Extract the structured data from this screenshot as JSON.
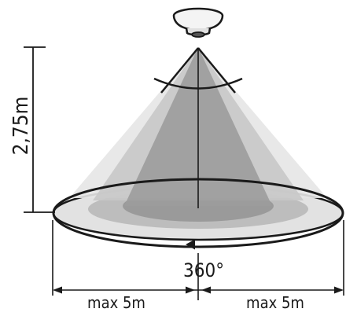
{
  "dimensions": {
    "height": "2,75m",
    "coverage": "360°",
    "left_range": "max 5m",
    "right_range": "max 5m"
  },
  "colors": {
    "line": "#1a1a1a",
    "cone_outer": "#e6e6e6",
    "cone_mid": "#c8c8c8",
    "cone_inner": "#9c9c9c",
    "floor_outer": "#e2e2e2",
    "floor_mid": "#bdbdbd",
    "floor_inner": "#9a9a9a"
  },
  "icons": {
    "sensor": "ceiling-motion-sensor-icon"
  }
}
